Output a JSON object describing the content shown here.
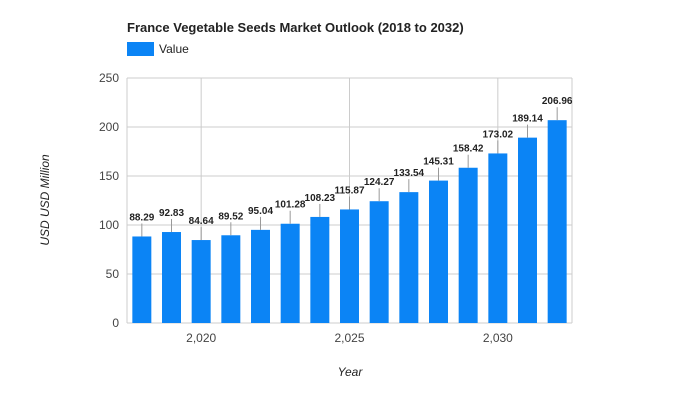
{
  "chart_data": {
    "type": "bar",
    "title": "France Vegetable Seeds Market Outlook (2018 to 2032)",
    "xlabel": "Year",
    "ylabel": "USD USD Million",
    "x": [
      2018,
      2019,
      2020,
      2021,
      2022,
      2023,
      2024,
      2025,
      2026,
      2027,
      2028,
      2029,
      2030,
      2031,
      2032
    ],
    "series": [
      {
        "name": "Value",
        "values": [
          88.29,
          92.83,
          84.64,
          89.52,
          95.04,
          101.28,
          108.23,
          115.87,
          124.27,
          133.54,
          145.31,
          158.42,
          173.02,
          189.14,
          206.96
        ],
        "labels": [
          "88.29",
          "92.83",
          "84.64",
          "89.52",
          "95.04",
          "101.28",
          "108.23",
          "115.87",
          "124.27",
          "133.54",
          "145.31",
          "158.42",
          "173.02",
          "189.14",
          "206.96"
        ]
      }
    ],
    "ylim": [
      0,
      250
    ],
    "yticks": [
      0,
      50,
      100,
      150,
      200,
      250
    ],
    "xticks": [
      2020,
      2025,
      2030
    ],
    "xtick_labels": [
      "2,020",
      "2,025",
      "2,030"
    ],
    "grid": true,
    "legend_position": "top-left",
    "colors": {
      "bar": "#0b84f5",
      "grid": "#cccccc",
      "data_label_line": "#999999"
    }
  }
}
